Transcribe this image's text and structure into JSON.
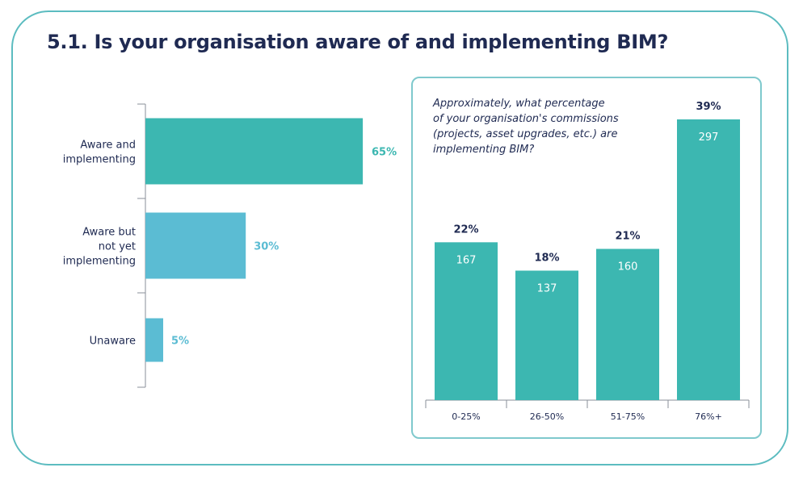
{
  "title": "5.1.  Is your organisation aware of and implementing BIM?",
  "colors": {
    "teal": "#3cb7b1",
    "light_blue": "#5bbcd3",
    "navy": "#1f2a52",
    "border": "#5cbcc0"
  },
  "chart_data": [
    {
      "type": "bar",
      "orientation": "horizontal",
      "categories": [
        [
          "Aware and",
          "implementing"
        ],
        [
          "Aware but",
          "not yet",
          "implementing"
        ],
        [
          "Unaware"
        ]
      ],
      "values": [
        65,
        30,
        5
      ],
      "value_labels": [
        "65%",
        "30%",
        "5%"
      ],
      "colors": [
        "#3cb7b1",
        "#5bbcd3",
        "#5bbcd3"
      ],
      "xlim": [
        0,
        100
      ],
      "legend": "none",
      "grid": false
    },
    {
      "type": "bar",
      "orientation": "vertical",
      "question": [
        "Approximately, what percentage",
        "of your organisation's commissions",
        "(projects, asset upgrades, etc.) are",
        "implementing BIM?"
      ],
      "categories": [
        "0-25%",
        "26-50%",
        "51-75%",
        "76%+"
      ],
      "values": [
        167,
        137,
        160,
        297
      ],
      "value_labels": [
        "167",
        "137",
        "160",
        "297"
      ],
      "percent_labels": [
        "22%",
        "18%",
        "21%",
        "39%"
      ],
      "color": "#3cb7b1",
      "ylim": [
        0,
        297
      ],
      "legend": "none",
      "grid": false
    }
  ]
}
